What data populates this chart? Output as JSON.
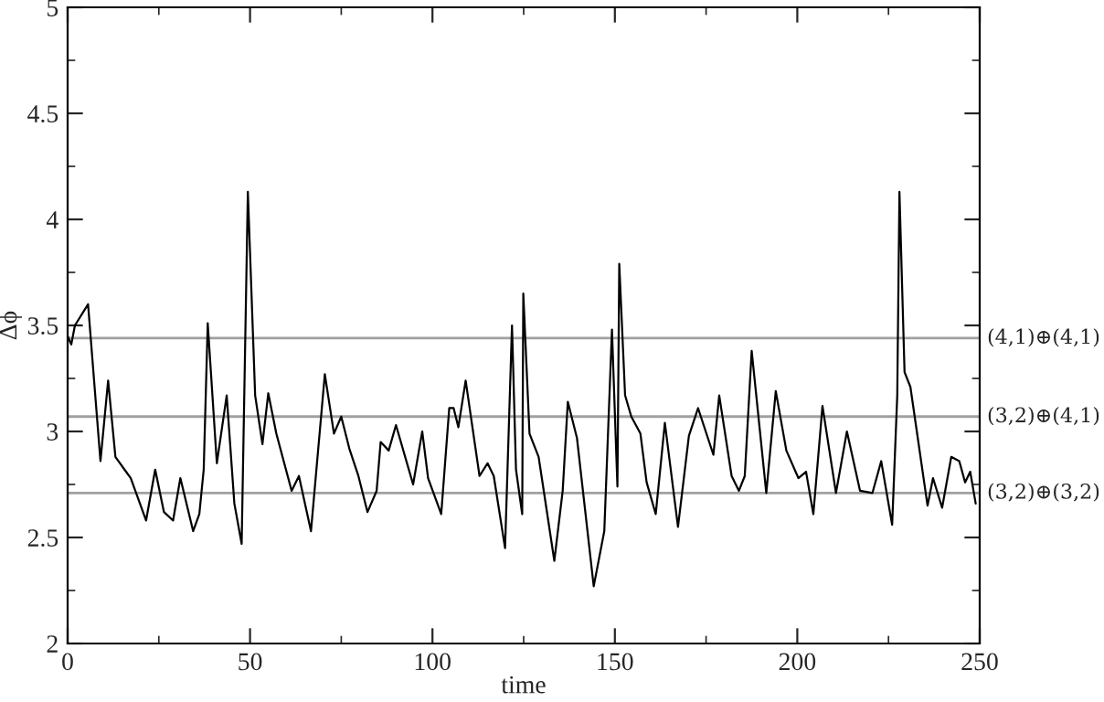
{
  "chart_data": {
    "type": "line",
    "xlabel": "time",
    "ylabel": "Δϕ",
    "xlim": [
      0,
      250
    ],
    "xticks": [
      0,
      50,
      100,
      150,
      200,
      250
    ],
    "ylim": [
      2,
      5
    ],
    "yticks": [
      2,
      2.5,
      3,
      3.5,
      4,
      4.5,
      5
    ],
    "series": [
      {
        "color": "#000000",
        "x": [
          0,
          1,
          2,
          5.6,
          9,
          11.1,
          13.1,
          15.6,
          17.3,
          21.5,
          24,
          26.4,
          28.9,
          30.9,
          34.4,
          36.1,
          37.3,
          38.4,
          40.9,
          43.6,
          45.7,
          47.7,
          49.4,
          51.4,
          53.4,
          55,
          57.2,
          61.4,
          63.4,
          66.7,
          70.5,
          73,
          75,
          77.2,
          79.7,
          82.2,
          84.7,
          85.8,
          88,
          90,
          94.7,
          97.2,
          98.8,
          102.4,
          104.6,
          105.8,
          107.1,
          109.1,
          112.9,
          115.1,
          116.8,
          119.9,
          121.8,
          122.9,
          124.6,
          124.9,
          126.6,
          129.1,
          133.4,
          135.7,
          137.1,
          139.6,
          144.2,
          147.1,
          149.2,
          150.7,
          151.2,
          152.8,
          154.5,
          157,
          158.7,
          161.2,
          163.7,
          167.3,
          170.3,
          172.8,
          177,
          178.6,
          182,
          184,
          185.6,
          187.5,
          191.5,
          194.1,
          197,
          200.3,
          202.4,
          204.4,
          206.9,
          210.6,
          213.6,
          217.2,
          220.6,
          223,
          226,
          227.4,
          228,
          229.4,
          231,
          235.7,
          237.2,
          239.7,
          242.2,
          244.4,
          246,
          247.4,
          248.9
        ],
        "values": [
          3.45,
          3.41,
          3.5,
          3.6,
          2.86,
          3.24,
          2.88,
          2.82,
          2.78,
          2.58,
          2.82,
          2.62,
          2.58,
          2.78,
          2.53,
          2.61,
          2.82,
          3.51,
          2.85,
          3.17,
          2.66,
          2.47,
          4.13,
          3.17,
          2.94,
          3.18,
          2.99,
          2.72,
          2.79,
          2.53,
          3.27,
          2.99,
          3.07,
          2.92,
          2.79,
          2.62,
          2.72,
          2.95,
          2.91,
          3.03,
          2.75,
          3.0,
          2.78,
          2.61,
          3.11,
          3.11,
          3.02,
          3.24,
          2.79,
          2.85,
          2.79,
          2.45,
          3.5,
          2.82,
          2.61,
          3.65,
          2.99,
          2.88,
          2.39,
          2.72,
          3.14,
          2.97,
          2.27,
          2.53,
          3.48,
          2.74,
          3.79,
          3.17,
          3.07,
          2.99,
          2.76,
          2.61,
          3.04,
          2.55,
          2.98,
          3.11,
          2.89,
          3.17,
          2.79,
          2.72,
          2.79,
          3.38,
          2.71,
          3.19,
          2.91,
          2.78,
          2.81,
          2.61,
          3.12,
          2.71,
          3.0,
          2.72,
          2.71,
          2.86,
          2.56,
          3.17,
          4.13,
          3.28,
          3.21,
          2.65,
          2.78,
          2.64,
          2.88,
          2.86,
          2.76,
          2.81,
          2.66
        ]
      }
    ],
    "ref_lines": [
      {
        "axis": "y",
        "value": 3.44,
        "label": "(4,1)⊕(4,1)",
        "color": "#a0a0a0"
      },
      {
        "axis": "y",
        "value": 3.07,
        "label": "(3,2)⊕(4,1)",
        "color": "#a0a0a0"
      },
      {
        "axis": "y",
        "value": 2.71,
        "label": "(3,2)⊕(3,2)",
        "color": "#a0a0a0"
      }
    ],
    "grid": false,
    "legend": false
  }
}
